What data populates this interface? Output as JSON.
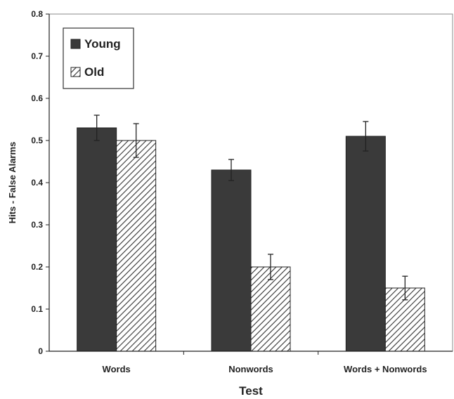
{
  "chart_data": {
    "type": "bar",
    "title": "",
    "xlabel": "Test",
    "ylabel": "Hits - False Alarms",
    "categories": [
      "Words",
      "Nonwords",
      "Words + Nonwords"
    ],
    "series": [
      {
        "name": "Young",
        "values": [
          0.53,
          0.43,
          0.51
        ],
        "errors": [
          0.03,
          0.025,
          0.035
        ],
        "color": "#3a3a3a",
        "pattern": "solid"
      },
      {
        "name": "Old",
        "values": [
          0.5,
          0.2,
          0.15
        ],
        "errors": [
          0.04,
          0.03,
          0.028
        ],
        "color": "#3a3a3a",
        "pattern": "diagonal-hatch"
      }
    ],
    "ylim": [
      0,
      0.8
    ],
    "yticks": [
      "0",
      "0.1",
      "0.2",
      "0.3",
      "0.4",
      "0.5",
      "0.6",
      "0.7",
      "0.8"
    ],
    "legend_position": "top-left",
    "grid": false
  }
}
